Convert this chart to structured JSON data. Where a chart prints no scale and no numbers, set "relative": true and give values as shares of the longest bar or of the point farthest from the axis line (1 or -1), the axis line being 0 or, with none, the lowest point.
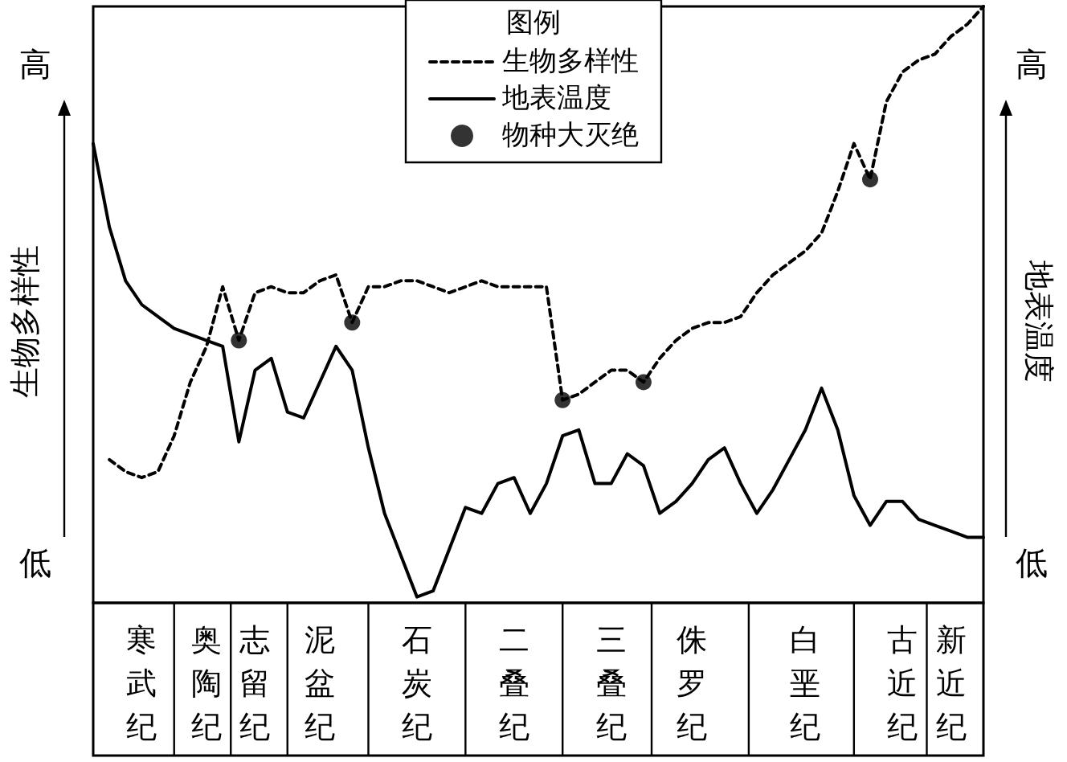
{
  "chart_data": {
    "type": "line",
    "relative": true,
    "ylabel": "生物多样性",
    "y2label": "地表温度",
    "legend_title": "图例",
    "legend": "top",
    "grid": false,
    "annotations": [
      "高",
      "低",
      "高",
      "低"
    ],
    "categories": [
      null,
      null,
      null,
      "寒武纪",
      null,
      null,
      null,
      "奥陶纪",
      null,
      null,
      "志留纪",
      null,
      null,
      null,
      "泥盆纪",
      null,
      null,
      null,
      null,
      null,
      "石炭纪",
      null,
      null,
      null,
      null,
      null,
      "二叠纪",
      null,
      null,
      null,
      null,
      null,
      "三叠纪",
      null,
      null,
      null,
      null,
      "侏罗纪",
      null,
      null,
      null,
      null,
      null,
      null,
      "白垩纪",
      null,
      null,
      null,
      null,
      null,
      "古近纪",
      null,
      null,
      "新近纪",
      null,
      null
    ],
    "series": [
      {
        "name": "生物多样性",
        "type": "line",
        "color": "#000000",
        "line_style": "dashed",
        "marker": "none",
        "values": [
          null,
          0.24,
          0.22,
          0.21,
          0.22,
          0.28,
          0.37,
          0.43,
          0.53,
          0.44,
          0.52,
          0.53,
          0.52,
          0.52,
          0.54,
          0.55,
          0.47,
          0.53,
          0.53,
          0.54,
          0.54,
          0.53,
          0.52,
          0.53,
          0.54,
          0.53,
          0.53,
          0.53,
          0.53,
          0.34,
          0.35,
          0.37,
          0.39,
          0.39,
          0.37,
          0.41,
          0.44,
          0.46,
          0.47,
          0.47,
          0.48,
          0.52,
          0.55,
          0.57,
          0.59,
          0.62,
          0.69,
          0.77,
          0.71,
          0.84,
          0.89,
          0.91,
          0.92,
          0.95,
          0.97,
          1.0
        ]
      },
      {
        "name": "地表温度",
        "type": "line",
        "color": "#000000",
        "line_style": "solid",
        "marker": "none",
        "values": [
          0.77,
          0.63,
          0.54,
          0.5,
          0.48,
          0.46,
          0.45,
          0.44,
          0.43,
          0.27,
          0.39,
          0.41,
          0.32,
          0.31,
          0.37,
          0.43,
          0.39,
          0.26,
          0.15,
          0.08,
          0.01,
          0.02,
          0.09,
          0.16,
          0.15,
          0.2,
          0.21,
          0.15,
          0.2,
          0.28,
          0.29,
          0.2,
          0.2,
          0.25,
          0.23,
          0.15,
          0.17,
          0.2,
          0.24,
          0.26,
          0.2,
          0.15,
          0.19,
          0.24,
          0.29,
          0.36,
          0.29,
          0.18,
          0.13,
          0.17,
          0.17,
          0.14,
          0.13,
          0.12,
          0.11,
          0.11
        ]
      },
      {
        "name": "物种大灭绝",
        "type": "scatter",
        "color": "#000000",
        "marker": "circle",
        "values": [
          null,
          null,
          null,
          null,
          null,
          null,
          null,
          null,
          null,
          0.44,
          null,
          null,
          null,
          null,
          null,
          null,
          0.47,
          null,
          null,
          null,
          null,
          null,
          null,
          null,
          null,
          null,
          null,
          null,
          null,
          0.34,
          null,
          null,
          null,
          null,
          0.37,
          null,
          null,
          null,
          null,
          null,
          null,
          null,
          null,
          null,
          null,
          null,
          null,
          null,
          0.71,
          null,
          null,
          null,
          null,
          null,
          null,
          null
        ]
      }
    ]
  }
}
